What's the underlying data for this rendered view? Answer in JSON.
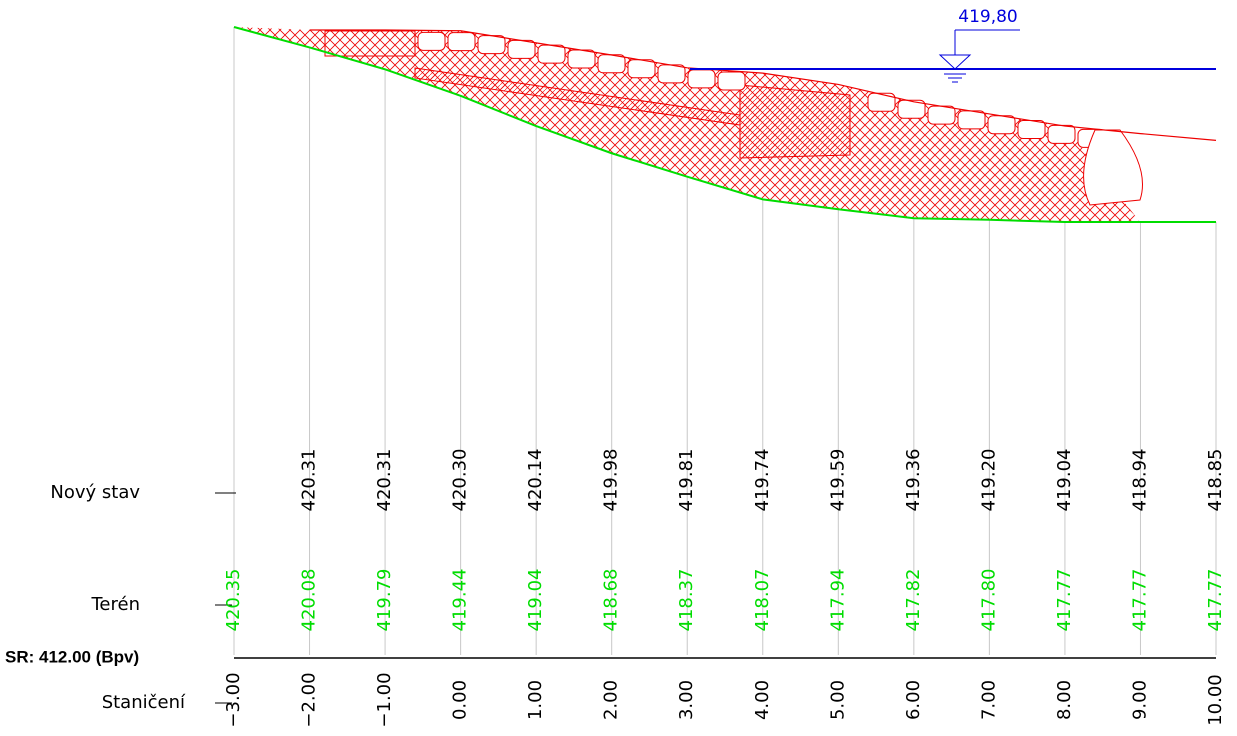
{
  "labels": {
    "new_state": "Nový stav",
    "terrain": "Terén",
    "datum": "SR: 412.00 (Bpv)",
    "station": "Staničení"
  },
  "water_level": "419,80",
  "stations": [
    "−3.00",
    "−2.00",
    "−1.00",
    "0.00",
    "1.00",
    "2.00",
    "3.00",
    "4.00",
    "5.00",
    "6.00",
    "7.00",
    "8.00",
    "9.00",
    "10.00"
  ],
  "new_state": [
    null,
    "420.31",
    "420.31",
    "420.30",
    "420.14",
    "419.98",
    "419.81",
    "419.74",
    "419.59",
    "419.36",
    "419.20",
    "419.04",
    "418.94",
    "418.85"
  ],
  "terrain": [
    "420.35",
    "420.08",
    "419.79",
    "419.44",
    "419.04",
    "418.68",
    "418.37",
    "418.07",
    "417.94",
    "417.82",
    "417.80",
    "417.77",
    "417.77",
    "417.77"
  ]
}
